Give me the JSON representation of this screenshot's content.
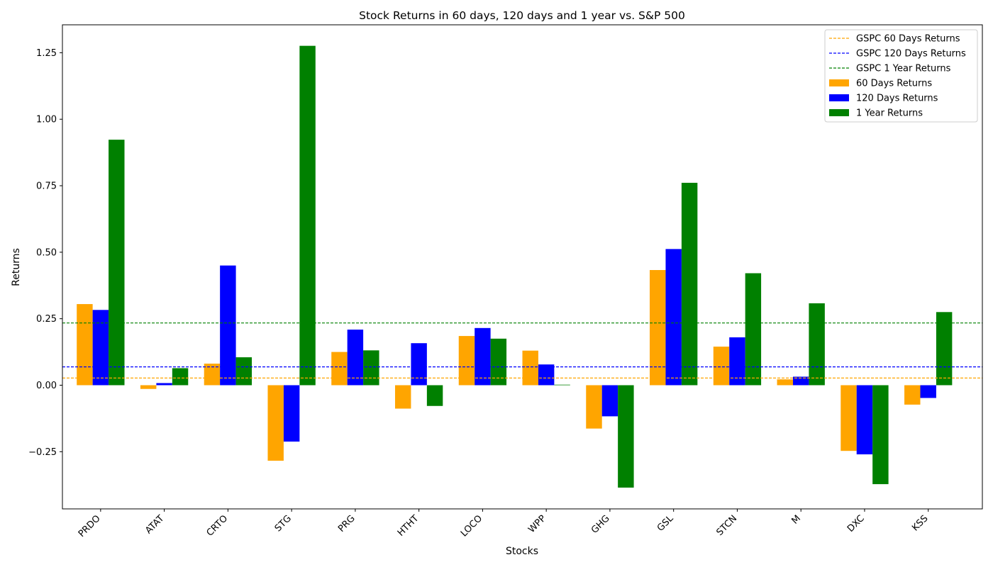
{
  "chart_data": {
    "type": "bar",
    "title": "Stock Returns in 60 days, 120 days and 1 year vs. S&P 500",
    "xlabel": "Stocks",
    "ylabel": "Returns",
    "categories": [
      "PRDO",
      "ATAT",
      "CRTO",
      "STG",
      "PRG",
      "HTHT",
      "LOCO",
      "WPP",
      "GHG",
      "GSL",
      "STCN",
      "M",
      "DXC",
      "KSS"
    ],
    "ylim": [
      -0.465,
      1.355
    ],
    "yticks": [
      -0.25,
      0.0,
      0.25,
      0.5,
      0.75,
      1.0,
      1.25
    ],
    "ytick_labels": [
      "−0.25",
      "0.00",
      "0.25",
      "0.50",
      "0.75",
      "1.00",
      "1.25"
    ],
    "grid": false,
    "legend_position": "top-right",
    "series": [
      {
        "name": "60 Days Returns",
        "color": "#ffa500",
        "values": [
          0.305,
          -0.014,
          0.081,
          -0.284,
          0.125,
          -0.088,
          0.185,
          0.13,
          -0.163,
          0.433,
          0.145,
          0.022,
          -0.247,
          -0.073
        ]
      },
      {
        "name": "120 Days Returns",
        "color": "#0000ff",
        "values": [
          0.283,
          0.008,
          0.45,
          -0.212,
          0.209,
          0.158,
          0.215,
          0.078,
          -0.117,
          0.512,
          0.18,
          0.032,
          -0.26,
          -0.048
        ]
      },
      {
        "name": "1 Year Returns",
        "color": "#008000",
        "values": [
          0.923,
          0.064,
          0.105,
          1.276,
          0.131,
          -0.078,
          0.175,
          0.002,
          -0.385,
          0.761,
          0.421,
          0.308,
          -0.372,
          0.275
        ]
      }
    ],
    "reference_lines": [
      {
        "name": "GSPC 60 Days Returns",
        "color": "#ffa500",
        "value": 0.027
      },
      {
        "name": "GSPC 120 Days Returns",
        "color": "#0000ff",
        "value": 0.069
      },
      {
        "name": "GSPC 1 Year Returns",
        "color": "#008000",
        "value": 0.234
      }
    ]
  }
}
